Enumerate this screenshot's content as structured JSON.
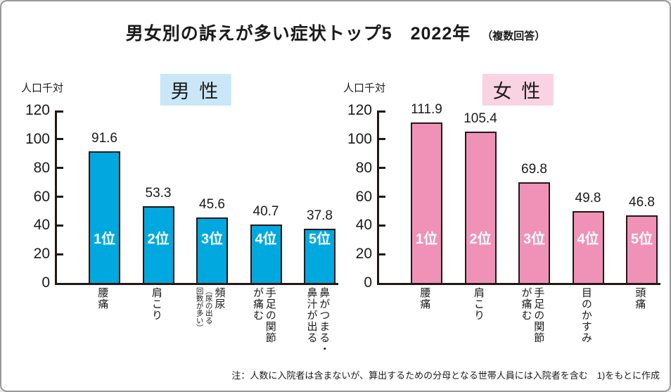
{
  "title": {
    "main": "男女別の訴えが多い症状トップ5　2022年",
    "sub": "（複数回答）"
  },
  "footnote": "注：人数に入院者は含まないが、算出するための分母となる世帯人員には入院者を含む　1)をもとに作成",
  "colors": {
    "male_bar": "#00a8e0",
    "male_badge_bg": "#c9e7f7",
    "female_bar": "#f092b8",
    "female_badge_bg": "#f9d3e2",
    "bar_border": "#231815",
    "axis": "#231815"
  },
  "chart_data": [
    {
      "type": "bar",
      "title": "男 性",
      "unit_label": "人口千対",
      "ylabel": "人口千対",
      "categories": [
        "腰痛",
        "肩こり",
        "頻尿",
        "手足の関節\nが痛む",
        "鼻がつまる・\n鼻汁が出る"
      ],
      "category_notes": [
        "",
        "",
        "（尿の出る\n回数が多い）",
        "",
        ""
      ],
      "values": [
        91.6,
        53.3,
        45.6,
        40.7,
        37.8
      ],
      "rank_labels": [
        "1位",
        "2位",
        "3位",
        "4位",
        "5位"
      ],
      "ylim": [
        0,
        120
      ],
      "ytick_step": 20,
      "grid": false,
      "bar_color": "#00a8e0",
      "badge_bg": "#c9e7f7"
    },
    {
      "type": "bar",
      "title": "女 性",
      "unit_label": "人口千対",
      "ylabel": "人口千対",
      "categories": [
        "腰痛",
        "肩こり",
        "手足の関節\nが痛む",
        "目のかすみ",
        "頭痛"
      ],
      "category_notes": [
        "",
        "",
        "",
        "",
        ""
      ],
      "values": [
        111.9,
        105.4,
        69.8,
        49.8,
        46.8
      ],
      "rank_labels": [
        "1位",
        "2位",
        "3位",
        "4位",
        "5位"
      ],
      "ylim": [
        0,
        120
      ],
      "ytick_step": 20,
      "grid": false,
      "bar_color": "#f092b8",
      "badge_bg": "#f9d3e2"
    }
  ]
}
